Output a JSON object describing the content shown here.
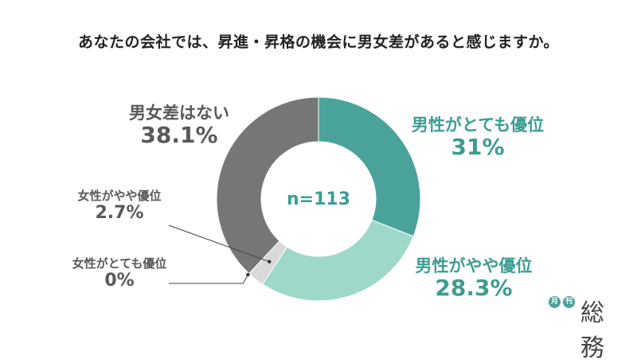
{
  "title": "あなたの会社では、昇進・昇格の機会に男女差があると感じますか。",
  "colors": {
    "male_much": "#4aa39a",
    "male_somewhat": "#9ed8cb",
    "female_somewhat": "#d9d9d9",
    "female_much": "#bfbfbf",
    "no_difference": "#767676",
    "accent_text": "#3d9d93",
    "gray_text": "#595959"
  },
  "chart_data": {
    "type": "pie",
    "donut": true,
    "center_label": "n=113",
    "slices": [
      {
        "key": "male_much",
        "label": "男性がとても優位",
        "value": 31,
        "display": "31%"
      },
      {
        "key": "male_somewhat",
        "label": "男性がやや優位",
        "value": 28.3,
        "display": "28.3%"
      },
      {
        "key": "female_somewhat",
        "label": "女性がやや優位",
        "value": 2.7,
        "display": "2.7%"
      },
      {
        "key": "female_much",
        "label": "女性がとても優位",
        "value": 0,
        "display": "0%"
      },
      {
        "key": "no_difference",
        "label": "男女差はない",
        "value": 38.1,
        "display": "38.1%"
      }
    ]
  },
  "logo": {
    "badge1": "月",
    "badge2": "刊",
    "text": "総務"
  }
}
